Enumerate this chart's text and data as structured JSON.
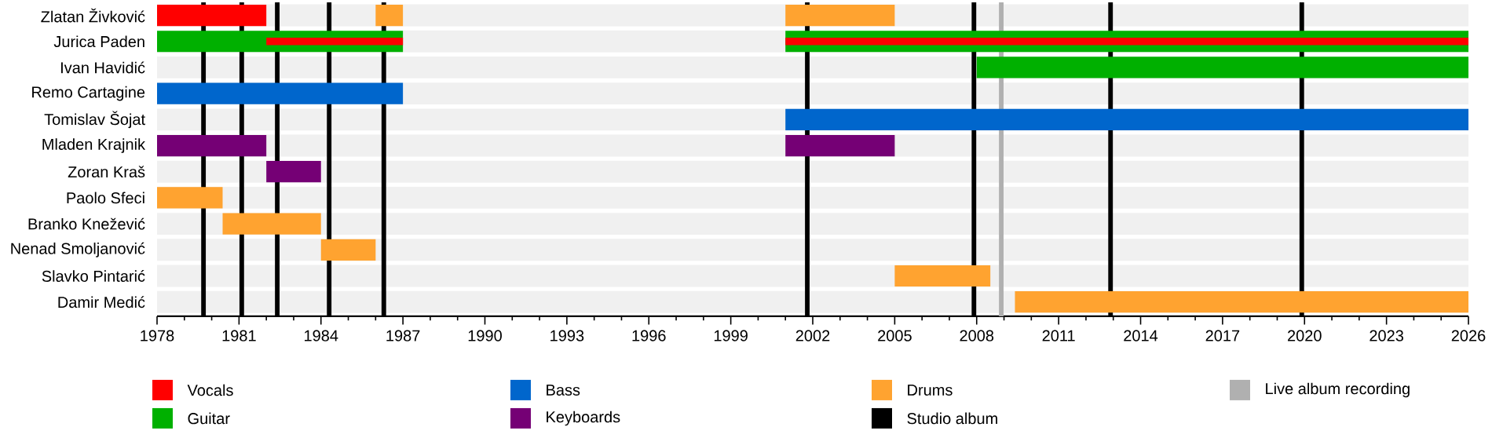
{
  "chart_data": {
    "type": "bar",
    "orientation": "horizontal",
    "legend": "bottom",
    "categories": [
      "Zlatan Živković",
      "Jurica Paden",
      "Ivan Havidić",
      "Remo Cartagine",
      "Tomislav Šojat",
      "Mladen Krajnik",
      "Zoran Kraš",
      "Paolo Sfeci",
      "Branko Knežević",
      "Nenad Smoljanović",
      "Slavko Pintarić",
      "Damir Medić"
    ],
    "xlim": [
      1978,
      2026
    ],
    "xticks": [
      1978,
      1981,
      1984,
      1987,
      1990,
      1993,
      1996,
      1999,
      2002,
      2005,
      2008,
      2011,
      2014,
      2017,
      2020,
      2023,
      2026
    ],
    "series": [
      {
        "name": "Vocals",
        "color": "#ff0000",
        "base": [
          1978,
          1982,
          null,
          null,
          null,
          null,
          null,
          null,
          null,
          null,
          null,
          null
        ],
        "values": [
          4,
          5,
          null,
          null,
          null,
          null,
          null,
          null,
          null,
          null,
          null,
          null
        ]
      },
      {
        "color": "#ff0000",
        "base": [
          null,
          2001,
          null,
          null,
          null,
          null,
          null,
          null,
          null,
          null,
          null,
          null
        ],
        "values": [
          null,
          25,
          null,
          null,
          null,
          null,
          null,
          null,
          null,
          null,
          null,
          null
        ]
      },
      {
        "name": "Guitar",
        "color": "#00b000",
        "base": [
          null,
          1978,
          2008,
          null,
          null,
          null,
          null,
          null,
          null,
          null,
          null,
          null
        ],
        "values": [
          null,
          9,
          18,
          null,
          null,
          null,
          null,
          null,
          null,
          null,
          null,
          null
        ]
      },
      {
        "color": "#00b000",
        "base": [
          null,
          2001,
          null,
          null,
          null,
          null,
          null,
          null,
          null,
          null,
          null,
          null
        ],
        "values": [
          null,
          25,
          null,
          null,
          null,
          null,
          null,
          null,
          null,
          null,
          null,
          null
        ]
      },
      {
        "name": "Bass",
        "color": "#0066cc",
        "base": [
          null,
          null,
          null,
          1978,
          2001,
          null,
          null,
          null,
          null,
          null,
          null,
          null
        ],
        "values": [
          null,
          null,
          null,
          9,
          25,
          null,
          null,
          null,
          null,
          null,
          null,
          null
        ]
      },
      {
        "name": "Keyboards",
        "color": "#750075",
        "base": [
          null,
          null,
          null,
          null,
          null,
          1978,
          1982,
          null,
          null,
          null,
          null,
          null
        ],
        "values": [
          null,
          null,
          null,
          null,
          null,
          4,
          2,
          null,
          null,
          null,
          null,
          null
        ]
      },
      {
        "color": "#750075",
        "base": [
          null,
          null,
          null,
          null,
          null,
          2001,
          null,
          null,
          null,
          null,
          null,
          null
        ],
        "values": [
          null,
          null,
          null,
          null,
          null,
          4,
          null,
          null,
          null,
          null,
          null,
          null
        ]
      },
      {
        "name": "Drums",
        "color": "#ffa330",
        "base": [
          1986,
          null,
          null,
          null,
          null,
          null,
          null,
          1978,
          1980.4,
          1984,
          2005,
          2009.4
        ],
        "values": [
          1,
          null,
          null,
          null,
          null,
          null,
          null,
          2.4,
          3.6,
          2,
          3.5,
          16.6
        ]
      },
      {
        "color": "#ffa330",
        "base": [
          2001,
          null,
          null,
          null,
          null,
          null,
          null,
          null,
          null,
          null,
          null,
          null
        ],
        "values": [
          4,
          null,
          null,
          null,
          null,
          null,
          null,
          null,
          null,
          null,
          null,
          null
        ]
      }
    ],
    "ref_lines": [
      {
        "axis": "x",
        "value": 1979.7,
        "label": "Studio album",
        "color": "#000000"
      },
      {
        "axis": "x",
        "value": 1981.1,
        "color": "#000000"
      },
      {
        "axis": "x",
        "value": 1982.4,
        "color": "#000000"
      },
      {
        "axis": "x",
        "value": 1984.3,
        "color": "#000000"
      },
      {
        "axis": "x",
        "value": 1986.3,
        "color": "#000000"
      },
      {
        "axis": "x",
        "value": 2001.8,
        "color": "#000000"
      },
      {
        "axis": "x",
        "value": 2007.9,
        "color": "#000000"
      },
      {
        "axis": "x",
        "value": 2012.9,
        "color": "#000000"
      },
      {
        "axis": "x",
        "value": 2019.9,
        "color": "#000000"
      },
      {
        "axis": "x",
        "value": 2008.9,
        "label": "Live album recording",
        "color": "#b0b0b0"
      }
    ]
  }
}
